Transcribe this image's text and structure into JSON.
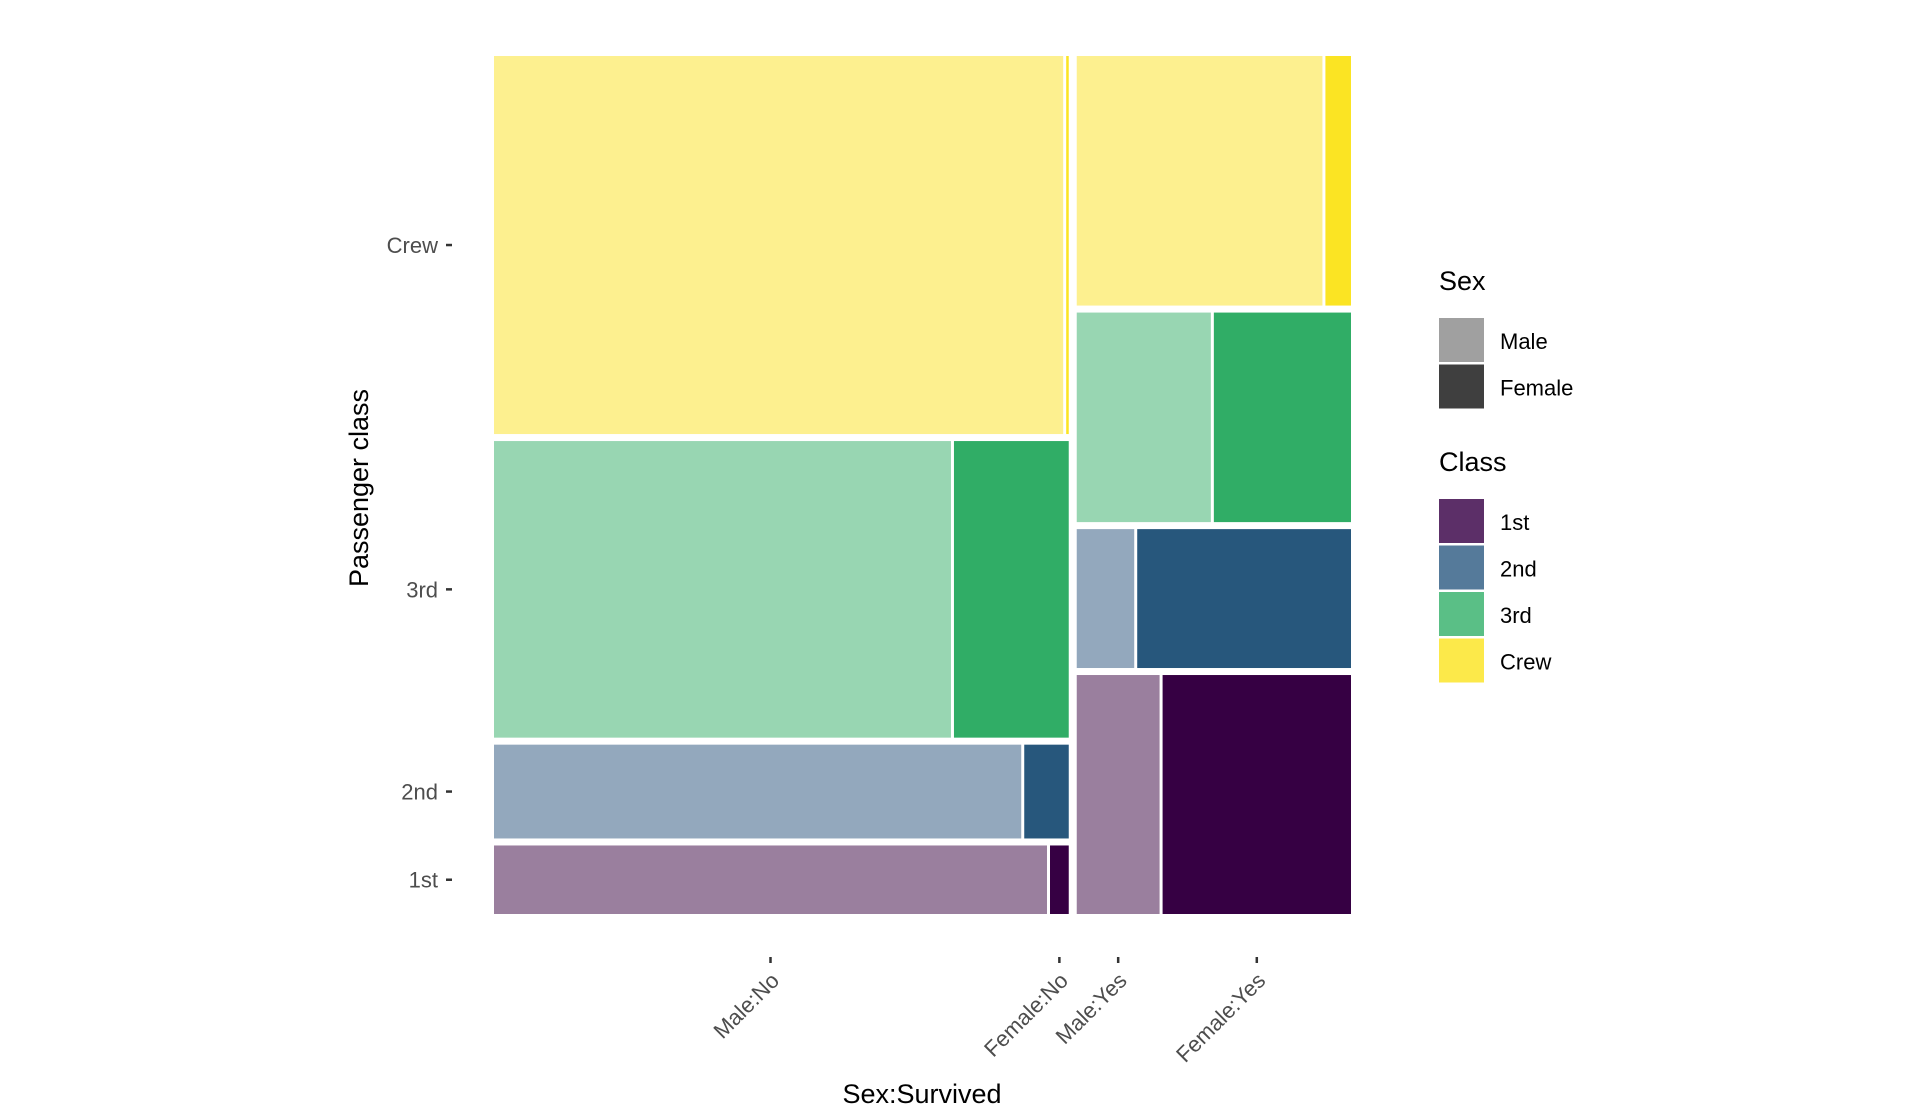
{
  "chart_data": {
    "type": "mosaic",
    "title": "",
    "xlabel": "Sex:Survived",
    "ylabel": "Passenger class",
    "x_ticks": [
      "Male:No",
      "Female:No",
      "Male:Yes",
      "Female:Yes"
    ],
    "y_ticks": [
      "1st",
      "2nd",
      "3rd",
      "Crew"
    ],
    "columns": [
      "No",
      "Yes"
    ],
    "rows": [
      "1st",
      "2nd",
      "3rd",
      "Crew"
    ],
    "sexes": [
      "Male",
      "Female"
    ],
    "cells": [
      {
        "survived": "No",
        "class": "1st",
        "sex": "Male",
        "count": 118
      },
      {
        "survived": "No",
        "class": "1st",
        "sex": "Female",
        "count": 4
      },
      {
        "survived": "No",
        "class": "2nd",
        "sex": "Male",
        "count": 154
      },
      {
        "survived": "No",
        "class": "2nd",
        "sex": "Female",
        "count": 13
      },
      {
        "survived": "No",
        "class": "3rd",
        "sex": "Male",
        "count": 422
      },
      {
        "survived": "No",
        "class": "3rd",
        "sex": "Female",
        "count": 106
      },
      {
        "survived": "No",
        "class": "Crew",
        "sex": "Male",
        "count": 670
      },
      {
        "survived": "No",
        "class": "Crew",
        "sex": "Female",
        "count": 3
      },
      {
        "survived": "Yes",
        "class": "1st",
        "sex": "Male",
        "count": 62
      },
      {
        "survived": "Yes",
        "class": "1st",
        "sex": "Female",
        "count": 141
      },
      {
        "survived": "Yes",
        "class": "2nd",
        "sex": "Male",
        "count": 25
      },
      {
        "survived": "Yes",
        "class": "2nd",
        "sex": "Female",
        "count": 93
      },
      {
        "survived": "Yes",
        "class": "3rd",
        "sex": "Male",
        "count": 88
      },
      {
        "survived": "Yes",
        "class": "3rd",
        "sex": "Female",
        "count": 90
      },
      {
        "survived": "Yes",
        "class": "Crew",
        "sex": "Male",
        "count": 192
      },
      {
        "survived": "Yes",
        "class": "Crew",
        "sex": "Female",
        "count": 20
      }
    ],
    "colors": {
      "1st": "#360043",
      "2nd": "#27577c",
      "3rd": "#30ad66",
      "Crew": "#fbe423",
      "1st_male": "#9a7f9e",
      "2nd_male": "#93a8bd",
      "3rd_male": "#98d6b2",
      "Crew_male": "#fdf08f"
    },
    "legends": [
      {
        "title": "Sex",
        "items": [
          {
            "label": "Male",
            "color": "#a0a0a0"
          },
          {
            "label": "Female",
            "color": "#3f3f3f"
          }
        ]
      },
      {
        "title": "Class",
        "items": [
          {
            "label": "1st",
            "color": "#5c2f68"
          },
          {
            "label": "2nd",
            "color": "#557a9a"
          },
          {
            "label": "3rd",
            "color": "#5abf86"
          },
          {
            "label": "Crew",
            "color": "#fce94a"
          }
        ]
      }
    ],
    "legend_position": "right",
    "grid": false
  }
}
